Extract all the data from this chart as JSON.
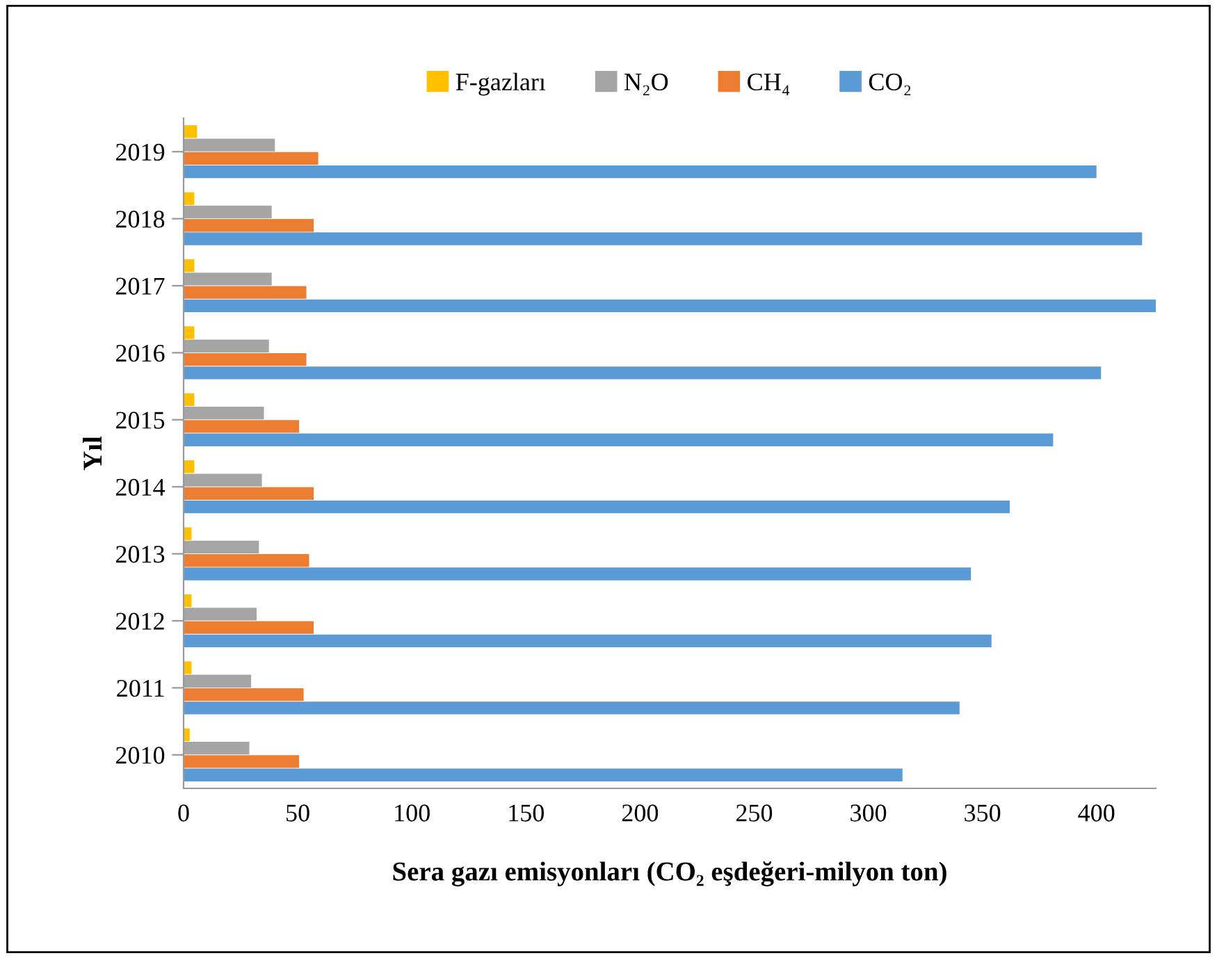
{
  "chart_data": {
    "type": "bar",
    "orientation": "horizontal",
    "xlabel": "Sera gazı emisyonları (CO₂ eşdeğeri-milyon ton)",
    "ylabel": "Yıl",
    "categories": [
      "2019",
      "2018",
      "2017",
      "2016",
      "2015",
      "2014",
      "2013",
      "2012",
      "2011",
      "2010"
    ],
    "series": [
      {
        "name": "F-gazları",
        "color": "#ffc000",
        "values": [
          5.9,
          4.7,
          4.7,
          4.7,
          4.7,
          4.7,
          3.5,
          3.5,
          3.5,
          2.7
        ]
      },
      {
        "name": "N₂O",
        "color": "#a5a5a5",
        "values": [
          40,
          38.6,
          38.6,
          37.4,
          35.2,
          34.3,
          33,
          32,
          29.6,
          28.8
        ]
      },
      {
        "name": "CH₄",
        "color": "#ed7d31",
        "values": [
          59,
          57,
          53.8,
          53.8,
          50.6,
          57,
          55,
          57,
          52.6,
          50.6
        ]
      },
      {
        "name": "CO₂",
        "color": "#5b9bd5",
        "values": [
          400,
          420,
          426,
          402,
          381,
          362,
          345,
          354,
          340,
          315
        ]
      }
    ],
    "xlim": [
      0,
      426
    ],
    "xticks": [
      0,
      50,
      100,
      150,
      200,
      250,
      300,
      350,
      400
    ],
    "grid": false,
    "legend": "top"
  }
}
